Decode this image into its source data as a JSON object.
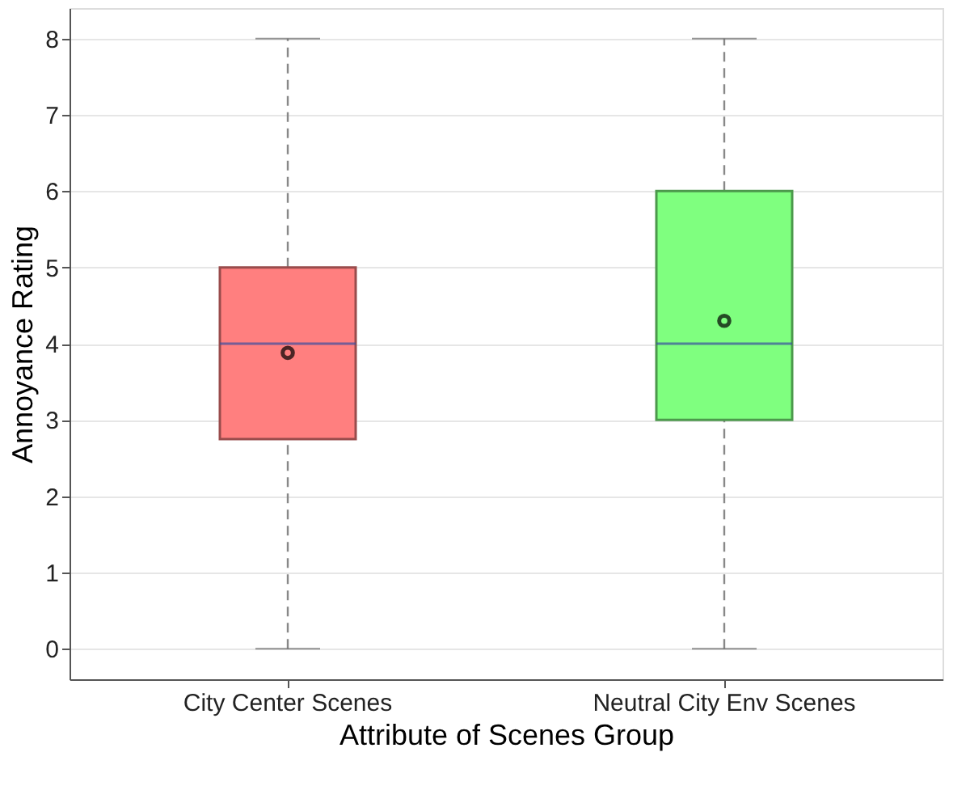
{
  "chart_data": {
    "type": "box",
    "xlabel": "Attribute of Scenes Group",
    "ylabel": "Annoyance Rating",
    "categories": [
      "City Center Scenes",
      "Neutral City Env Scenes"
    ],
    "boxes": [
      {
        "low": 0,
        "q1": 2.75,
        "median": 4,
        "q3": 5,
        "high": 8,
        "mean": 3.88
      },
      {
        "low": 0,
        "q1": 3,
        "median": 4,
        "q3": 6,
        "high": 8,
        "mean": 4.3
      }
    ],
    "colors": [
      "#ff7f7f",
      "#7fff7f"
    ],
    "ylim": [
      -0.4,
      8.4
    ],
    "yticks": [
      0,
      1,
      2,
      3,
      4,
      5,
      6,
      7,
      8
    ],
    "grid": "y"
  }
}
